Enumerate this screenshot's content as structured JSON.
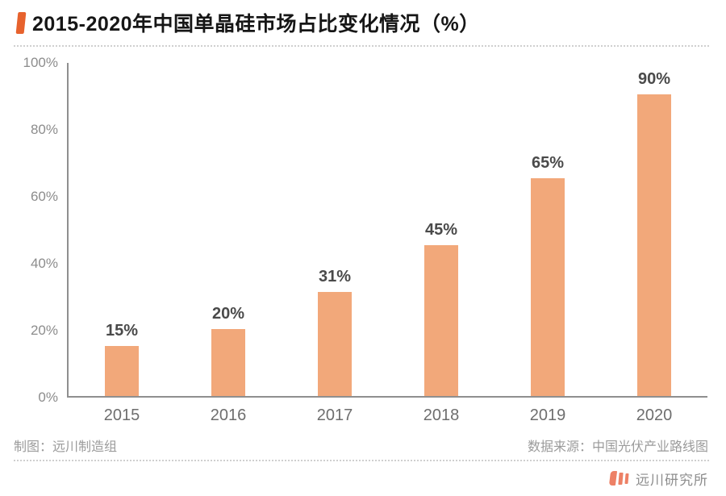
{
  "title": "2015-2020年中国单晶硅市场占比变化情况（%）",
  "chart_data": {
    "type": "bar",
    "title": "2015-2020年中国单晶硅市场占比变化情况（%）",
    "categories": [
      "2015",
      "2016",
      "2017",
      "2018",
      "2019",
      "2020"
    ],
    "values": [
      15,
      20,
      31,
      45,
      65,
      90
    ],
    "value_labels": [
      "15%",
      "20%",
      "31%",
      "45%",
      "65%",
      "90%"
    ],
    "xlabel": "",
    "ylabel": "",
    "ylim": [
      0,
      100
    ],
    "yticks": [
      "0%",
      "20%",
      "40%",
      "60%",
      "80%",
      "100%"
    ],
    "grid": false,
    "legend_position": "none",
    "bar_color": "#F2A87A"
  },
  "footer": {
    "left": "制图：远川制造组",
    "right": "数据来源：中国光伏产业路线图"
  },
  "branding": {
    "name": "远川研究所",
    "logo_icon": "three-strokes-chuan-icon",
    "logo_color": "#ED8166"
  },
  "colors": {
    "accent": "#E7622D",
    "bar": "#F2A87A",
    "axis": "#8F8F8F",
    "value_label": "#4A4A4A",
    "x_tick_label": "#6E6E6E",
    "y_tick_label": "#8C8C8C",
    "footer_text": "#9B9B9B",
    "brand_text": "#8D8D8D"
  }
}
